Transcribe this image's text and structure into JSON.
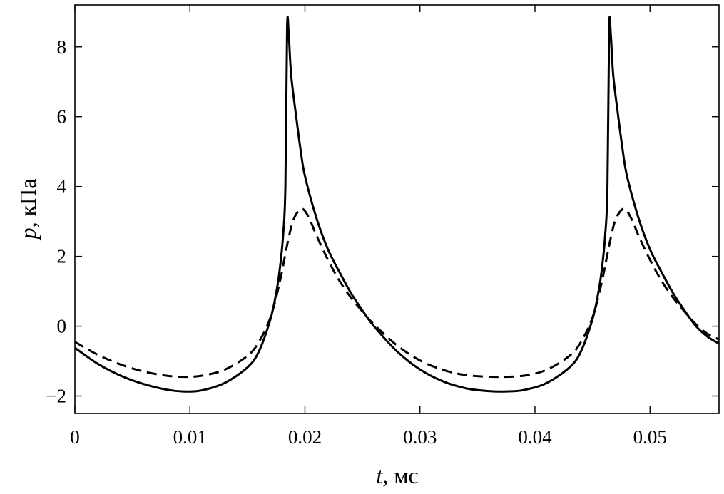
{
  "chart_data": {
    "type": "line",
    "xlabel_var": "t",
    "xlabel_unit": ", мс",
    "ylabel_var": "p",
    "ylabel_unit": ", кПа",
    "xlim": [
      0,
      0.056
    ],
    "ylim": [
      -2.5,
      9.2
    ],
    "x_ticks": [
      0,
      0.01,
      0.02,
      0.03,
      0.04,
      0.05
    ],
    "x_tick_labels": [
      "0",
      "0.01",
      "0.02",
      "0.03",
      "0.04",
      "0.05"
    ],
    "y_ticks": [
      -2,
      0,
      2,
      4,
      6,
      8
    ],
    "y_tick_labels": [
      "−2",
      "0",
      "2",
      "4",
      "6",
      "8"
    ],
    "grid": false,
    "series": [
      {
        "style": "solid",
        "color": "#000000",
        "points": [
          [
            0,
            -0.62
          ],
          [
            0.002,
            -1.08
          ],
          [
            0.004,
            -1.42
          ],
          [
            0.006,
            -1.66
          ],
          [
            0.008,
            -1.82
          ],
          [
            0.0095,
            -1.87
          ],
          [
            0.011,
            -1.84
          ],
          [
            0.013,
            -1.63
          ],
          [
            0.015,
            -1.18
          ],
          [
            0.016,
            -0.72
          ],
          [
            0.017,
            0.2
          ],
          [
            0.0175,
            0.95
          ],
          [
            0.0178,
            1.6
          ],
          [
            0.0181,
            2.6
          ],
          [
            0.0183,
            4.0
          ],
          [
            0.01845,
            8.55
          ],
          [
            0.0186,
            8.3
          ],
          [
            0.0188,
            7.2
          ],
          [
            0.0192,
            6.1
          ],
          [
            0.0196,
            5.1
          ],
          [
            0.02,
            4.3
          ],
          [
            0.021,
            3.1
          ],
          [
            0.022,
            2.2
          ],
          [
            0.023,
            1.55
          ],
          [
            0.024,
            0.95
          ],
          [
            0.025,
            0.45
          ],
          [
            0.026,
            0.0
          ],
          [
            0.028,
            -0.72
          ],
          [
            0.03,
            -1.24
          ],
          [
            0.032,
            -1.58
          ],
          [
            0.034,
            -1.78
          ],
          [
            0.036,
            -1.86
          ],
          [
            0.0375,
            -1.87
          ],
          [
            0.039,
            -1.83
          ],
          [
            0.041,
            -1.63
          ],
          [
            0.043,
            -1.18
          ],
          [
            0.044,
            -0.72
          ],
          [
            0.045,
            0.2
          ],
          [
            0.0455,
            0.95
          ],
          [
            0.0458,
            1.6
          ],
          [
            0.0461,
            2.6
          ],
          [
            0.0463,
            4.0
          ],
          [
            0.04645,
            8.55
          ],
          [
            0.0466,
            8.3
          ],
          [
            0.0468,
            7.2
          ],
          [
            0.0472,
            6.1
          ],
          [
            0.0476,
            5.1
          ],
          [
            0.048,
            4.3
          ],
          [
            0.049,
            3.1
          ],
          [
            0.05,
            2.2
          ],
          [
            0.051,
            1.55
          ],
          [
            0.052,
            0.95
          ],
          [
            0.053,
            0.45
          ],
          [
            0.054,
            0.0
          ],
          [
            0.055,
            -0.3
          ],
          [
            0.056,
            -0.5
          ]
        ]
      },
      {
        "style": "dashed",
        "color": "#000000",
        "points": [
          [
            0,
            -0.45
          ],
          [
            0.002,
            -0.82
          ],
          [
            0.004,
            -1.1
          ],
          [
            0.006,
            -1.3
          ],
          [
            0.008,
            -1.42
          ],
          [
            0.0095,
            -1.45
          ],
          [
            0.011,
            -1.42
          ],
          [
            0.013,
            -1.25
          ],
          [
            0.015,
            -0.85
          ],
          [
            0.016,
            -0.45
          ],
          [
            0.017,
            0.25
          ],
          [
            0.0178,
            1.25
          ],
          [
            0.0185,
            2.4
          ],
          [
            0.019,
            3.05
          ],
          [
            0.0196,
            3.35
          ],
          [
            0.02,
            3.3
          ],
          [
            0.0205,
            3.0
          ],
          [
            0.021,
            2.6
          ],
          [
            0.022,
            1.9
          ],
          [
            0.023,
            1.3
          ],
          [
            0.024,
            0.82
          ],
          [
            0.025,
            0.42
          ],
          [
            0.026,
            0.05
          ],
          [
            0.028,
            -0.55
          ],
          [
            0.03,
            -0.98
          ],
          [
            0.032,
            -1.25
          ],
          [
            0.034,
            -1.4
          ],
          [
            0.0365,
            -1.45
          ],
          [
            0.039,
            -1.42
          ],
          [
            0.041,
            -1.25
          ],
          [
            0.043,
            -0.85
          ],
          [
            0.044,
            -0.45
          ],
          [
            0.045,
            0.25
          ],
          [
            0.0458,
            1.25
          ],
          [
            0.0465,
            2.4
          ],
          [
            0.047,
            3.05
          ],
          [
            0.0476,
            3.35
          ],
          [
            0.048,
            3.3
          ],
          [
            0.0485,
            3.0
          ],
          [
            0.049,
            2.6
          ],
          [
            0.05,
            1.9
          ],
          [
            0.051,
            1.3
          ],
          [
            0.052,
            0.82
          ],
          [
            0.053,
            0.42
          ],
          [
            0.054,
            0.05
          ],
          [
            0.055,
            -0.22
          ],
          [
            0.056,
            -0.38
          ]
        ]
      }
    ]
  }
}
